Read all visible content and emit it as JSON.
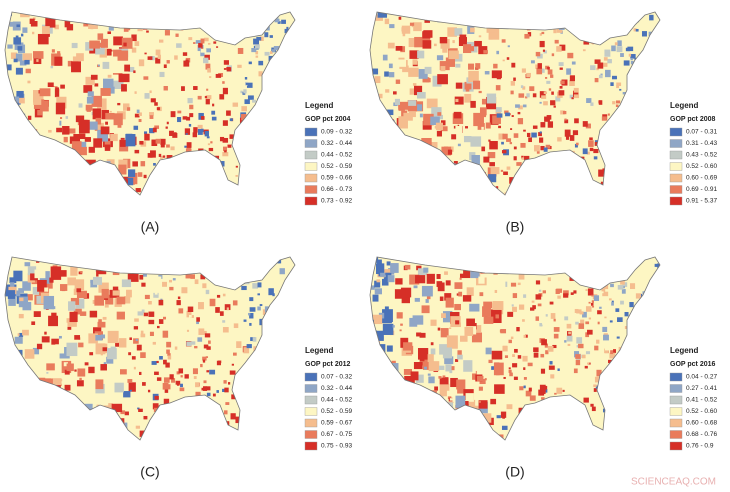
{
  "panels": [
    {
      "label": "(A)",
      "legend": {
        "title": "Legend",
        "subtitle": "GOP pct 2004",
        "items": [
          {
            "label": "0.09 - 0.32",
            "color": "#4a72b8"
          },
          {
            "label": "0.32 - 0.44",
            "color": "#8fa6c6"
          },
          {
            "label": "0.44 - 0.52",
            "color": "#c3cbc6"
          },
          {
            "label": "0.52 - 0.59",
            "color": "#fdf6c3"
          },
          {
            "label": "0.59 - 0.66",
            "color": "#f5bd8e"
          },
          {
            "label": "0.66 - 0.73",
            "color": "#e97b5c"
          },
          {
            "label": "0.73 - 0.92",
            "color": "#d62f27"
          }
        ]
      }
    },
    {
      "label": "(B)",
      "legend": {
        "title": "Legend",
        "subtitle": "GOP pct 2008",
        "items": [
          {
            "label": "0.07 - 0.31",
            "color": "#4a72b8"
          },
          {
            "label": "0.31 - 0.43",
            "color": "#8fa6c6"
          },
          {
            "label": "0.43 - 0.52",
            "color": "#c3cbc6"
          },
          {
            "label": "0.52 - 0.60",
            "color": "#fdf6c3"
          },
          {
            "label": "0.60 - 0.69",
            "color": "#f5bd8e"
          },
          {
            "label": "0.69 - 0.91",
            "color": "#e97b5c"
          },
          {
            "label": "0.91 - 5.37",
            "color": "#d62f27"
          }
        ]
      }
    },
    {
      "label": "(C)",
      "legend": {
        "title": "Legend",
        "subtitle": "GOP pct 2012",
        "items": [
          {
            "label": "0.07 - 0.32",
            "color": "#4a72b8"
          },
          {
            "label": "0.32 - 0.44",
            "color": "#8fa6c6"
          },
          {
            "label": "0.44 - 0.52",
            "color": "#c3cbc6"
          },
          {
            "label": "0.52 - 0.59",
            "color": "#fdf6c3"
          },
          {
            "label": "0.59 - 0.67",
            "color": "#f5bd8e"
          },
          {
            "label": "0.67 - 0.75",
            "color": "#e97b5c"
          },
          {
            "label": "0.75 - 0.93",
            "color": "#d62f27"
          }
        ]
      }
    },
    {
      "label": "(D)",
      "legend": {
        "title": "Legend",
        "subtitle": "GOP pct 2016",
        "items": [
          {
            "label": "0.04 - 0.27",
            "color": "#4a72b8"
          },
          {
            "label": "0.27 - 0.41",
            "color": "#8fa6c6"
          },
          {
            "label": "0.41 - 0.52",
            "color": "#c3cbc6"
          },
          {
            "label": "0.52 - 0.60",
            "color": "#fdf6c3"
          },
          {
            "label": "0.60 - 0.68",
            "color": "#f5bd8e"
          },
          {
            "label": "0.68 - 0.76",
            "color": "#e97b5c"
          },
          {
            "label": "0.76 - 0.9",
            "color": "#d62f27"
          }
        ]
      }
    }
  ],
  "watermark": "SCIENCEAQ.COM"
}
